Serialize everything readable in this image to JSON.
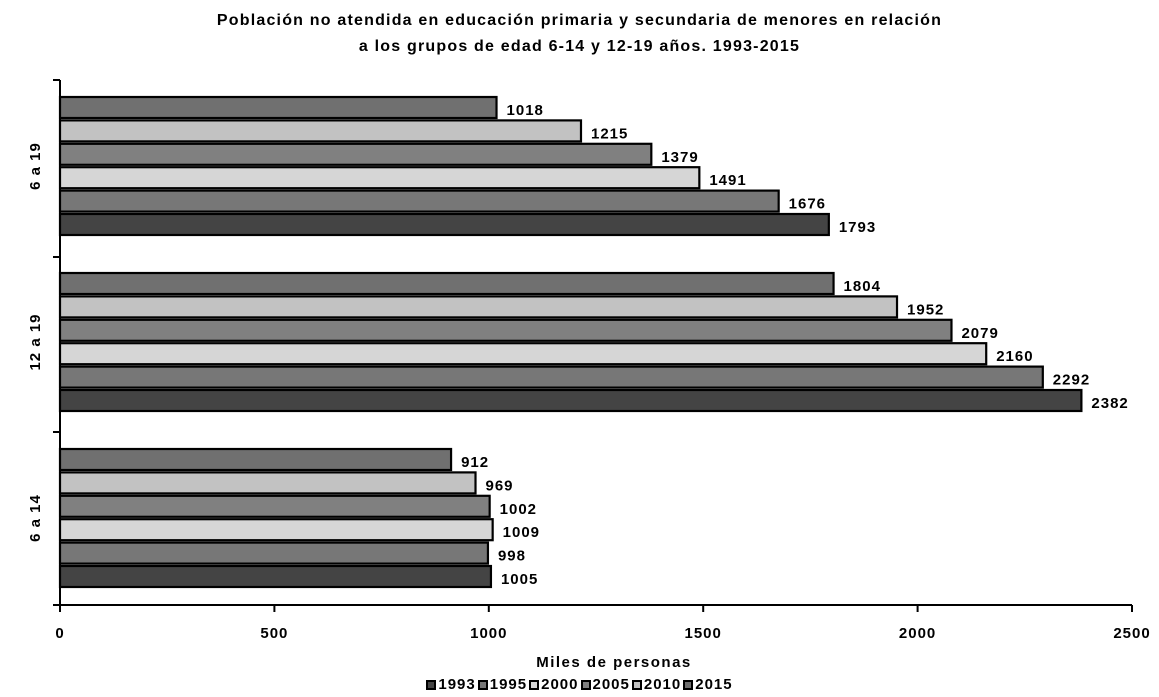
{
  "chart_data": {
    "type": "bar",
    "orientation": "horizontal",
    "title_line1": "Población no atendida en educación  primaria y secundaria de menores en relación",
    "title_line2": "a los grupos de edad 6-14 y 12-19 años. 1993-2015",
    "xlabel": "Miles de personas",
    "ylabel": "",
    "xlim": [
      0,
      2500
    ],
    "x_ticks": [
      "0",
      "500",
      "1000",
      "1500",
      "2000",
      "2500"
    ],
    "categories": [
      "6 a 19",
      "12 a 19",
      "6 a 14"
    ],
    "legend_position": "bottom",
    "grid": false,
    "series": [
      {
        "name": "1993",
        "color": "#444444",
        "values": [
          1793,
          2382,
          1005
        ]
      },
      {
        "name": "1995",
        "color": "#777777",
        "values": [
          1676,
          2292,
          998
        ]
      },
      {
        "name": "2000",
        "color": "#d6d6d6",
        "values": [
          1491,
          2160,
          1009
        ]
      },
      {
        "name": "2005",
        "color": "#808080",
        "values": [
          1379,
          2079,
          1002
        ]
      },
      {
        "name": "2010",
        "color": "#c2c2c2",
        "values": [
          1215,
          1952,
          969
        ]
      },
      {
        "name": "2015",
        "color": "#707070",
        "values": [
          1018,
          1804,
          912
        ]
      }
    ]
  }
}
